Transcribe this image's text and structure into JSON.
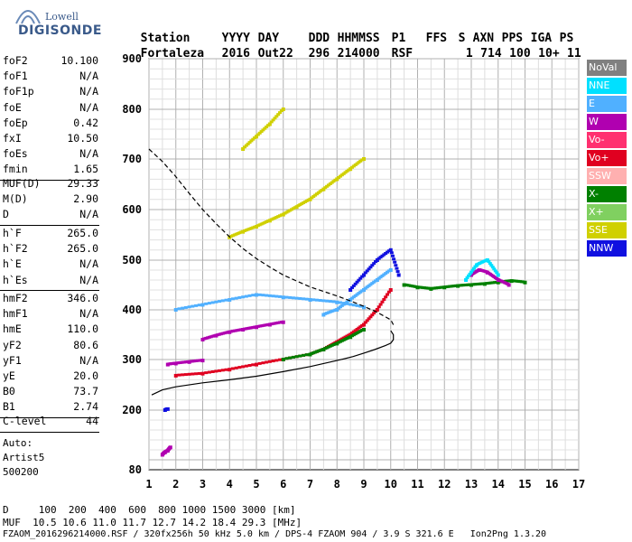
{
  "logo": {
    "line1": "Lowell",
    "line2": "DIGISONDE"
  },
  "header": {
    "labels": [
      "Station",
      "YYYY",
      "DAY",
      "DDD",
      "HHMMSS",
      "P1",
      "FFS",
      "S",
      "AXN",
      "PPS",
      "IGA",
      "PS"
    ],
    "values": [
      "Fortaleza",
      "2016",
      "Out22",
      "296",
      "214000",
      "RSF",
      "",
      "1",
      "714",
      "100",
      "10+",
      "11"
    ]
  },
  "params_group1": [
    {
      "name": "foF2",
      "value": "10.100"
    },
    {
      "name": "foF1",
      "value": "N/A"
    },
    {
      "name": "foF1p",
      "value": "N/A"
    },
    {
      "name": "foE",
      "value": "N/A"
    },
    {
      "name": "foEp",
      "value": "0.42"
    },
    {
      "name": "fxI",
      "value": "10.50"
    },
    {
      "name": "foEs",
      "value": "N/A"
    },
    {
      "name": "fmin",
      "value": "1.65"
    }
  ],
  "params_group2": [
    {
      "name": "MUF(D)",
      "value": "29.33"
    },
    {
      "name": "M(D)",
      "value": "2.90"
    },
    {
      "name": "D",
      "value": "N/A"
    }
  ],
  "params_group3": [
    {
      "name": "h`F",
      "value": "265.0"
    },
    {
      "name": "h`F2",
      "value": "265.0"
    },
    {
      "name": "h`E",
      "value": "N/A"
    },
    {
      "name": "h`Es",
      "value": "N/A"
    }
  ],
  "params_group4": [
    {
      "name": "hmF2",
      "value": "346.0"
    },
    {
      "name": "hmF1",
      "value": "N/A"
    },
    {
      "name": "hmE",
      "value": "110.0"
    },
    {
      "name": "yF2",
      "value": "80.6"
    },
    {
      "name": "yF1",
      "value": "N/A"
    },
    {
      "name": "yE",
      "value": "20.0"
    },
    {
      "name": "B0",
      "value": "73.7"
    },
    {
      "name": "B1",
      "value": "2.74"
    }
  ],
  "clevel": {
    "name": "C-level",
    "value": "44"
  },
  "autoscale": {
    "line1": "Auto:",
    "line2": "Artist5",
    "line3": "500200"
  },
  "footer": {
    "d_row": "D     100  200  400  600  800 1000 1500 3000 [km]",
    "muf_row": "MUF  10.5 10.6 11.0 11.7 12.7 14.2 18.4 29.3 [MHz]",
    "info_row": "FZAOM_2016296214000.RSF / 320fx256h 50 kHz 5.0 km / DPS-4 FZAOM 904 / 3.9 S 321.6 E   Ion2Png 1.3.20"
  },
  "legend": [
    {
      "label": "NoVal",
      "color": "#808080"
    },
    {
      "label": "NNE",
      "color": "#00e0ff"
    },
    {
      "label": "E",
      "color": "#50b0ff"
    },
    {
      "label": "W",
      "color": "#b000b0"
    },
    {
      "label": "Vo-",
      "color": "#ff3070"
    },
    {
      "label": "Vo+",
      "color": "#e00020"
    },
    {
      "label": "SSW",
      "color": "#ffb0b0"
    },
    {
      "label": "X-",
      "color": "#008000"
    },
    {
      "label": "X+",
      "color": "#80d060"
    },
    {
      "label": "SSE",
      "color": "#d0d000"
    },
    {
      "label": "NNW",
      "color": "#1010e0"
    }
  ],
  "chart_data": {
    "type": "scatter",
    "x_ticks": [
      "1",
      "2",
      "3",
      "4",
      "5",
      "6",
      "7",
      "8",
      "9",
      "10",
      "11",
      "12",
      "13",
      "14",
      "15",
      "16",
      "17"
    ],
    "y_ticks": [
      "80",
      "200",
      "300",
      "400",
      "500",
      "600",
      "700",
      "800",
      "900"
    ],
    "xlim": [
      1,
      17
    ],
    "ylim": [
      80,
      900
    ],
    "grid": true,
    "profile_curve": {
      "x": [
        1.1,
        1.5,
        2.0,
        3.0,
        4.0,
        5.0,
        6.0,
        7.0,
        8.0,
        8.6,
        9.0,
        9.4,
        9.8,
        10.0,
        10.1,
        10.1,
        10.0
      ],
      "y": [
        230,
        240,
        246,
        254,
        260,
        267,
        276,
        286,
        298,
        306,
        313,
        320,
        328,
        333,
        340,
        350,
        358
      ]
    },
    "muf_curve": {
      "x": [
        1.0,
        1.5,
        2.0,
        2.5,
        3.0,
        3.5,
        4.0,
        4.5,
        5.0,
        5.5,
        6.0,
        6.5,
        7.0,
        7.5,
        8.0,
        8.5,
        9.0,
        9.5,
        10.0,
        10.1
      ],
      "y": [
        720,
        695,
        665,
        632,
        600,
        572,
        546,
        523,
        503,
        486,
        470,
        458,
        446,
        437,
        428,
        418,
        407,
        395,
        380,
        370
      ]
    },
    "traces": [
      {
        "name": "F-trace",
        "color": "#e00020",
        "x": [
          2.0,
          3.0,
          4.0,
          5.0,
          6.0,
          7.0,
          7.5,
          8.0,
          8.5,
          9.0,
          9.5,
          10.0
        ],
        "y": [
          268,
          272,
          280,
          290,
          300,
          310,
          320,
          335,
          350,
          370,
          400,
          440
        ]
      },
      {
        "name": "F-trace-x",
        "color": "#008000",
        "x": [
          6.0,
          7.0,
          7.5,
          8.0,
          8.5,
          9.0
        ],
        "y": [
          300,
          310,
          320,
          332,
          345,
          360
        ]
      },
      {
        "name": "W-band",
        "color": "#b000b0",
        "x": [
          3.0,
          3.5,
          4.0,
          4.5,
          5.0,
          5.5,
          6.0
        ],
        "y": [
          340,
          348,
          355,
          360,
          365,
          370,
          375
        ]
      },
      {
        "name": "W-low",
        "color": "#b000b0",
        "x": [
          1.7,
          2.0,
          2.5,
          3.0
        ],
        "y": [
          290,
          292,
          295,
          298
        ]
      },
      {
        "name": "second-hop",
        "color": "#d0d000",
        "x": [
          4.0,
          4.5,
          5.0,
          5.5,
          6.0,
          6.5,
          7.0,
          7.5,
          8.0,
          8.5,
          9.0
        ],
        "y": [
          545,
          556,
          566,
          578,
          590,
          605,
          620,
          640,
          660,
          680,
          700
        ]
      },
      {
        "name": "second-hop-upper",
        "color": "#d0d000",
        "x": [
          4.5,
          5.0,
          5.5,
          6.0
        ],
        "y": [
          720,
          745,
          770,
          800
        ]
      },
      {
        "name": "E-band",
        "color": "#50b0ff",
        "x": [
          2.0,
          3.0,
          4.0,
          5.0,
          6.0,
          7.0,
          8.0,
          9.0
        ],
        "y": [
          400,
          410,
          420,
          430,
          425,
          420,
          415,
          405
        ]
      },
      {
        "name": "spread-F",
        "color": "#50b0ff",
        "x": [
          7.5,
          8.0,
          8.5,
          9.0,
          9.5,
          10.0
        ],
        "y": [
          390,
          400,
          420,
          440,
          460,
          480
        ]
      },
      {
        "name": "NNW-cluster",
        "color": "#1010e0",
        "x": [
          8.5,
          9.0,
          9.5,
          10.0,
          10.3
        ],
        "y": [
          440,
          470,
          500,
          520,
          470
        ]
      },
      {
        "name": "far-echo",
        "color": "#008000",
        "x": [
          10.5,
          11.0,
          11.5,
          12.0,
          12.5,
          13.0,
          13.5,
          14.0,
          14.5,
          15.0
        ],
        "y": [
          450,
          445,
          442,
          445,
          448,
          450,
          452,
          455,
          458,
          455
        ]
      },
      {
        "name": "far-echo-w",
        "color": "#b000b0",
        "x": [
          13.0,
          13.3,
          13.6,
          14.0,
          14.4
        ],
        "y": [
          470,
          480,
          475,
          460,
          450
        ]
      },
      {
        "name": "far-echo-nne",
        "color": "#00e0ff",
        "x": [
          12.8,
          13.2,
          13.6,
          14.0
        ],
        "y": [
          460,
          490,
          500,
          470
        ]
      },
      {
        "name": "low-trace",
        "color": "#b000b0",
        "x": [
          1.5,
          1.6,
          1.7,
          1.8
        ],
        "y": [
          110,
          115,
          118,
          125
        ]
      },
      {
        "name": "early",
        "color": "#1010e0",
        "x": [
          1.6,
          1.7
        ],
        "y": [
          200,
          202
        ]
      }
    ]
  }
}
